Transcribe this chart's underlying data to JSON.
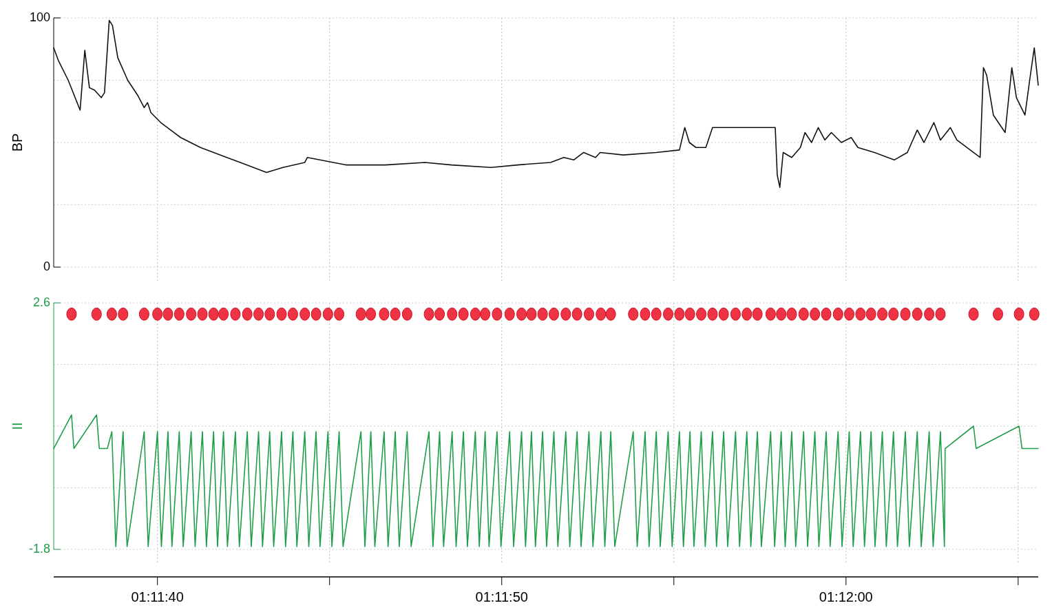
{
  "chart_data": [
    {
      "type": "line",
      "ylabel": "BP",
      "xlim": [
        1.193607,
        1.201551
      ],
      "ylim": [
        0,
        100
      ],
      "xticks": [
        {
          "value": 1.194444,
          "label": null
        },
        {
          "value": 1.195833,
          "label": null
        },
        {
          "value": 1.197222,
          "label": null
        },
        {
          "value": 1.198611,
          "label": null
        },
        {
          "value": 1.2,
          "label": null
        },
        {
          "value": 1.201389,
          "label": null
        }
      ],
      "yticks": [
        0,
        {
          "value": 25,
          "label": null
        },
        {
          "value": 50,
          "label": null
        },
        {
          "value": 75,
          "label": null
        },
        100
      ],
      "grid": true,
      "tick_labels": "y",
      "series": [
        {
          "color": "#111111",
          "x": [
            1.193607,
            1.193644,
            1.193724,
            1.19382,
            1.193858,
            1.193895,
            1.193937,
            1.193991,
            1.194017,
            1.194055,
            1.194081,
            1.194124,
            1.194204,
            1.194284,
            1.194337,
            1.194364,
            1.194391,
            1.194471,
            1.194631,
            1.194791,
            1.195004,
            1.195164,
            1.195324,
            1.195457,
            1.195633,
            1.195654,
            1.195964,
            1.196283,
            1.196603,
            1.196817,
            1.197136,
            1.19735,
            1.197616,
            1.197723,
            1.197803,
            1.197883,
            1.197979,
            1.198016,
            1.198203,
            1.198469,
            1.198656,
            1.198699,
            1.198736,
            1.198789,
            1.198869,
            1.198923,
            1.199429,
            1.199445,
            1.199466,
            1.199493,
            1.199562,
            1.199632,
            1.199669,
            1.199722,
            1.199776,
            1.199829,
            1.199882,
            1.199962,
            1.200042,
            1.200096,
            1.200229,
            1.200389,
            1.200495,
            1.200575,
            1.200629,
            1.200709,
            1.200762,
            1.200842,
            1.200895,
            1.201082,
            1.201109,
            1.201135,
            1.201189,
            1.201284,
            1.201338,
            1.201375,
            1.201444,
            1.201482,
            1.201519,
            1.201551
          ],
          "values": [
            88,
            83,
            75,
            63,
            87,
            72,
            71,
            68,
            70,
            99,
            97,
            84,
            75,
            69,
            64,
            66,
            62,
            58,
            52,
            48,
            44,
            41,
            38,
            40,
            42,
            44,
            41,
            41,
            42,
            41,
            40,
            41,
            42,
            44,
            43,
            46,
            44,
            46,
            45,
            46,
            47,
            56,
            50,
            48,
            48,
            56,
            56,
            37,
            32,
            46,
            44,
            48,
            54,
            50,
            56,
            51,
            54,
            50,
            52,
            48,
            46,
            43,
            46,
            55,
            50,
            58,
            51,
            56,
            51,
            44,
            80,
            77,
            61,
            54,
            80,
            68,
            61,
            75,
            88,
            73
          ]
        }
      ]
    },
    {
      "type": "line",
      "ylabel": "II",
      "xlim": [
        1.193607,
        1.201551
      ],
      "ylim": [
        -1.8,
        2.6
      ],
      "xticks": [
        {
          "value": 1.194444,
          "label": "01:11:40"
        },
        {
          "value": 1.195833,
          "label": null
        },
        {
          "value": 1.197222,
          "label": "01:11:50"
        },
        {
          "value": 1.198611,
          "label": null
        },
        {
          "value": 1.2,
          "label": "01:12:00"
        },
        {
          "value": 1.201389,
          "label": null
        }
      ],
      "yticks": [
        -1.8,
        {
          "value": -0.7,
          "label": null
        },
        {
          "value": 0.4,
          "label": null
        },
        {
          "value": 1.5,
          "label": null
        },
        2.6
      ],
      "grid": true,
      "series": [
        {
          "color": "#1e9e4a",
          "x": [
            1.193607,
            1.193751,
            1.19377,
            1.193953,
            1.193975,
            1.19404,
            1.194076,
            1.194108,
            1.194167,
            1.194199,
            1.194337,
            1.194369,
            1.194444,
            1.194476,
            1.194529,
            1.194561,
            1.19462,
            1.194652,
            1.194716,
            1.194748,
            1.194807,
            1.194839,
            1.194897,
            1.194929,
            1.194977,
            1.195009,
            1.195073,
            1.195105,
            1.195169,
            1.195201,
            1.19526,
            1.195292,
            1.19535,
            1.195382,
            1.195446,
            1.195478,
            1.195537,
            1.195569,
            1.195633,
            1.195665,
            1.195724,
            1.195756,
            1.19582,
            1.195852,
            1.19591,
            1.195942,
            1.196086,
            1.196118,
            1.196166,
            1.196198,
            1.196273,
            1.196305,
            1.196363,
            1.196395,
            1.196459,
            1.196491,
            1.196635,
            1.196667,
            1.196721,
            1.196753,
            1.196822,
            1.196854,
            1.196913,
            1.196945,
            1.197009,
            1.197041,
            1.197088,
            1.19712,
            1.197184,
            1.197216,
            1.197286,
            1.197318,
            1.197382,
            1.197414,
            1.197462,
            1.197494,
            1.197552,
            1.197584,
            1.197643,
            1.197675,
            1.197739,
            1.197771,
            1.19783,
            1.197862,
            1.197926,
            1.197958,
            1.198022,
            1.198054,
            1.198102,
            1.198134,
            1.198283,
            1.198315,
            1.198379,
            1.198411,
            1.198469,
            1.198501,
            1.198565,
            1.198597,
            1.198656,
            1.198688,
            1.198741,
            1.198773,
            1.198832,
            1.198864,
            1.198923,
            1.198955,
            1.199013,
            1.199045,
            1.199109,
            1.199141,
            1.1992,
            1.199232,
            1.199285,
            1.199317,
            1.199392,
            1.199424,
            1.199477,
            1.199509,
            1.199562,
            1.199594,
            1.199658,
            1.19969,
            1.199749,
            1.199781,
            1.19984,
            1.199872,
            1.199936,
            1.199968,
            1.200026,
            1.200058,
            1.200117,
            1.200149,
            1.200202,
            1.200234,
            1.200293,
            1.200325,
            1.200383,
            1.200415,
            1.200479,
            1.200511,
            1.200575,
            1.200607,
            1.200671,
            1.200703,
            1.200762,
            1.200794,
            1.2008,
            1.201029,
            1.20105,
            1.201396,
            1.20142,
            1.201551
          ],
          "values": [
            0,
            0.6,
            0,
            0.6,
            0,
            0,
            0.3,
            -1.75,
            0.3,
            -1.75,
            0.3,
            -1.75,
            0.3,
            -1.75,
            0.3,
            -1.75,
            0.3,
            -1.75,
            0.3,
            -1.75,
            0.3,
            -1.75,
            0.3,
            -1.75,
            0.3,
            -1.75,
            0.3,
            -1.75,
            0.3,
            -1.75,
            0.3,
            -1.75,
            0.3,
            -1.75,
            0.3,
            -1.75,
            0.3,
            -1.75,
            0.3,
            -1.75,
            0.3,
            -1.75,
            0.3,
            -1.75,
            0.3,
            -1.75,
            0.3,
            -1.75,
            0.3,
            -1.75,
            0.3,
            -1.75,
            0.3,
            -1.75,
            0.3,
            -1.75,
            0.3,
            -1.75,
            0.3,
            -1.75,
            0.3,
            -1.75,
            0.3,
            -1.75,
            0.3,
            -1.75,
            0.3,
            -1.75,
            0.3,
            -1.75,
            0.3,
            -1.75,
            0.3,
            -1.75,
            0.3,
            -1.75,
            0.3,
            -1.75,
            0.3,
            -1.75,
            0.3,
            -1.75,
            0.3,
            -1.75,
            0.3,
            -1.75,
            0.3,
            -1.75,
            0.3,
            -1.75,
            0.3,
            -1.75,
            0.3,
            -1.75,
            0.3,
            -1.75,
            0.3,
            -1.75,
            0.3,
            -1.75,
            0.3,
            -1.75,
            0.3,
            -1.75,
            0.3,
            -1.75,
            0.3,
            -1.75,
            0.3,
            -1.75,
            0.3,
            -1.75,
            0.3,
            -1.75,
            0.3,
            -1.75,
            0.3,
            -1.75,
            0.3,
            -1.75,
            0.3,
            -1.75,
            0.3,
            -1.75,
            0.3,
            -1.75,
            0.3,
            -1.75,
            0.3,
            -1.75,
            0.3,
            -1.75,
            0.3,
            -1.75,
            0.3,
            -1.75,
            0.3,
            -1.75,
            0.3,
            -1.75,
            0.3,
            -1.75,
            0.3,
            -1.75,
            0.3,
            -1.75,
            0,
            0.4,
            0,
            0.4,
            0,
            0
          ]
        },
        {
          "type": "scatter",
          "marker": "circle",
          "color": "#ee3344",
          "x": [
            1.193751,
            1.193953,
            1.194076,
            1.194167,
            1.194337,
            1.194444,
            1.194529,
            1.19462,
            1.194716,
            1.194807,
            1.194897,
            1.194977,
            1.195073,
            1.195169,
            1.19526,
            1.19535,
            1.195446,
            1.195537,
            1.195633,
            1.195724,
            1.19582,
            1.19591,
            1.196086,
            1.196166,
            1.196273,
            1.196363,
            1.196459,
            1.196635,
            1.196721,
            1.196822,
            1.196913,
            1.197009,
            1.197088,
            1.197184,
            1.197286,
            1.197382,
            1.197462,
            1.197552,
            1.197643,
            1.197739,
            1.19783,
            1.197926,
            1.198022,
            1.198102,
            1.198283,
            1.198379,
            1.198469,
            1.198565,
            1.198656,
            1.198741,
            1.198832,
            1.198923,
            1.199013,
            1.199109,
            1.1992,
            1.199285,
            1.199392,
            1.199477,
            1.199562,
            1.199658,
            1.199749,
            1.19984,
            1.199936,
            1.200026,
            1.200117,
            1.200202,
            1.200293,
            1.200383,
            1.200479,
            1.200575,
            1.200671,
            1.200762,
            1.201029,
            1.201226,
            1.201396,
            1.201519
          ],
          "values": [
            2.4,
            2.4,
            2.4,
            2.4,
            2.4,
            2.4,
            2.4,
            2.4,
            2.4,
            2.4,
            2.4,
            2.4,
            2.4,
            2.4,
            2.4,
            2.4,
            2.4,
            2.4,
            2.4,
            2.4,
            2.4,
            2.4,
            2.4,
            2.4,
            2.4,
            2.4,
            2.4,
            2.4,
            2.4,
            2.4,
            2.4,
            2.4,
            2.4,
            2.4,
            2.4,
            2.4,
            2.4,
            2.4,
            2.4,
            2.4,
            2.4,
            2.4,
            2.4,
            2.4,
            2.4,
            2.4,
            2.4,
            2.4,
            2.4,
            2.4,
            2.4,
            2.4,
            2.4,
            2.4,
            2.4,
            2.4,
            2.4,
            2.4,
            2.4,
            2.4,
            2.4,
            2.4,
            2.4,
            2.4,
            2.4,
            2.4,
            2.4,
            2.4,
            2.4,
            2.4,
            2.4,
            2.4,
            2.4,
            2.4,
            2.4,
            2.4
          ]
        }
      ]
    }
  ]
}
